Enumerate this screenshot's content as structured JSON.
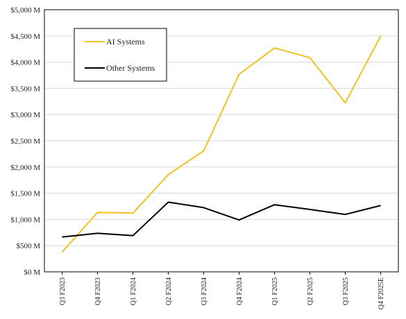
{
  "chart_data": {
    "type": "line",
    "categories": [
      "Q3 F2023",
      "Q4 F2023",
      "Q1 F2024",
      "Q2 F2024",
      "Q3 F2024",
      "Q4 F2024",
      "Q1 F2025",
      "Q2 F2025",
      "Q3 F2025",
      "Q4 F2025E"
    ],
    "series": [
      {
        "name": "AI Systems",
        "color": "#f2c01f",
        "values": [
          375,
          1135,
          1120,
          1855,
          2310,
          3770,
          4270,
          4085,
          3225,
          4500
        ]
      },
      {
        "name": "Other Systems",
        "color": "#000000",
        "values": [
          665,
          735,
          690,
          1330,
          1225,
          990,
          1280,
          1190,
          1095,
          1265
        ]
      }
    ],
    "ylim": [
      0,
      5000
    ],
    "yticks": [
      "$0 M",
      "$500 M",
      "$1,000 M",
      "$1,500 M",
      "$2,000 M",
      "$2,500 M",
      "$3,000 M",
      "$3,500 M",
      "$4,000 M",
      "$4,500 M",
      "$5,000 M"
    ],
    "grid": "horizontal",
    "legend_position": "top-left",
    "title": "",
    "xlabel": "",
    "ylabel": ""
  }
}
